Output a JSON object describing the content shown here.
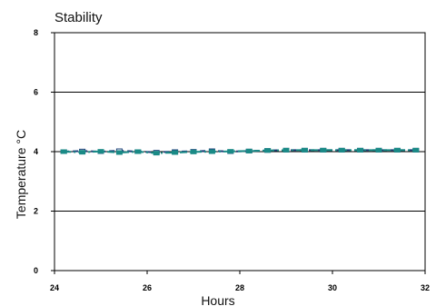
{
  "chart_data": {
    "type": "line",
    "title": "Stability",
    "xlabel": "Hours",
    "ylabel": "Temperature °C",
    "xlim": [
      24,
      32
    ],
    "ylim": [
      0,
      8
    ],
    "x_ticks": [
      24,
      26,
      28,
      30,
      32
    ],
    "y_ticks": [
      0,
      2,
      4,
      6,
      8
    ],
    "x_tick_labels": [
      "24",
      "26",
      "28",
      "30",
      "32"
    ],
    "y_tick_labels": [
      "0",
      "2",
      "4",
      "6",
      "8"
    ],
    "grid": "horizontal",
    "legend": "none",
    "series": [
      {
        "color": "#1f3f7a",
        "style": "dashed",
        "x": [
          24.2,
          24.6,
          25.0,
          25.4,
          25.8,
          26.2,
          26.6,
          27.0,
          27.4,
          27.8,
          28.2,
          28.6,
          29.0,
          29.4,
          29.8,
          30.2,
          30.6,
          31.0,
          31.4,
          31.8
        ],
        "y": [
          4.0,
          4.02,
          4.0,
          4.03,
          4.0,
          3.98,
          4.0,
          4.01,
          4.03,
          4.0,
          4.02,
          4.04,
          4.05,
          4.05,
          4.05,
          4.05,
          4.05,
          4.05,
          4.05,
          4.05
        ]
      },
      {
        "color": "#1a8a86",
        "style": "dash-dot",
        "x": [
          24.2,
          24.6,
          25.0,
          25.4,
          25.8,
          26.2,
          26.6,
          27.0,
          27.4,
          27.8,
          28.2,
          28.6,
          29.0,
          29.4,
          29.8,
          30.2,
          30.6,
          31.0,
          31.4,
          31.8
        ],
        "y": [
          4.0,
          3.98,
          4.01,
          3.97,
          4.0,
          3.95,
          3.97,
          3.99,
          4.0,
          4.01,
          4.02,
          4.04,
          4.05,
          4.05,
          4.05,
          4.05,
          4.05,
          4.05,
          4.05,
          4.05
        ]
      }
    ]
  }
}
